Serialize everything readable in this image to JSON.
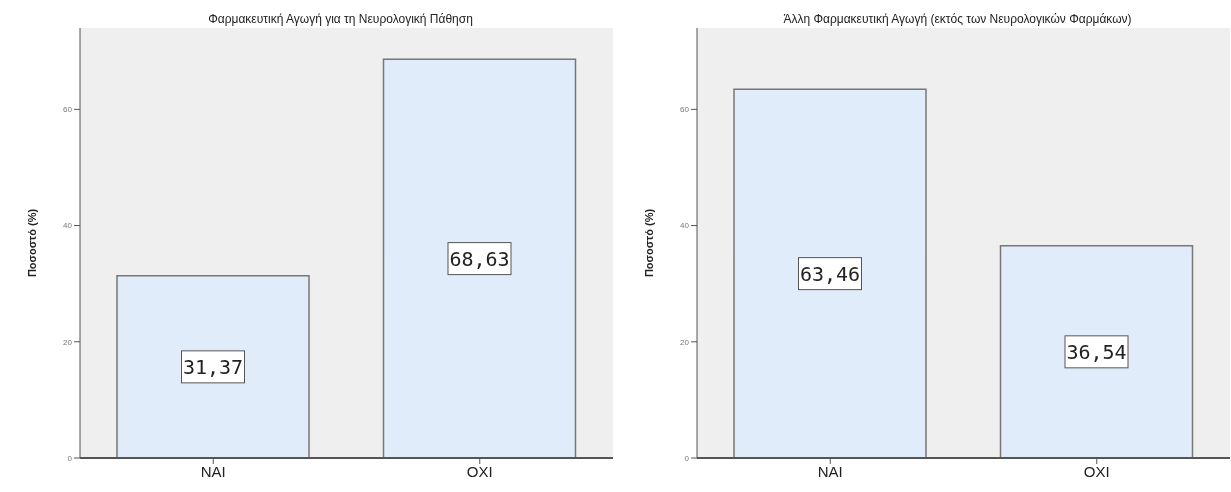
{
  "chart_data": [
    {
      "type": "bar",
      "title": "Φαρμακευτική Αγωγή για τη Νευρολογική Πάθηση",
      "ylabel": "Ποσοστό (%)",
      "categories": [
        "ΝΑΙ",
        "ΟΧΙ"
      ],
      "values": [
        31.37,
        68.63
      ],
      "value_labels": [
        "31,37",
        "68,63"
      ],
      "color": "#e0ecf9",
      "ylim": [
        0,
        74
      ],
      "yticks": [
        0,
        20,
        40,
        60
      ],
      "grid": false,
      "legend": false
    },
    {
      "type": "bar",
      "title": "Άλλη Φαρμακευτική Αγωγή (εκτός των Νευρολογικών Φαρμάκων)",
      "ylabel": "Ποσοστό (%)",
      "categories": [
        "ΝΑΙ",
        "ΟΧΙ"
      ],
      "values": [
        63.46,
        36.54
      ],
      "value_labels": [
        "63,46",
        "36,54"
      ],
      "color": "#e0ecf9",
      "ylim": [
        0,
        74
      ],
      "yticks": [
        0,
        20,
        40,
        60
      ],
      "grid": false,
      "legend": false
    }
  ]
}
